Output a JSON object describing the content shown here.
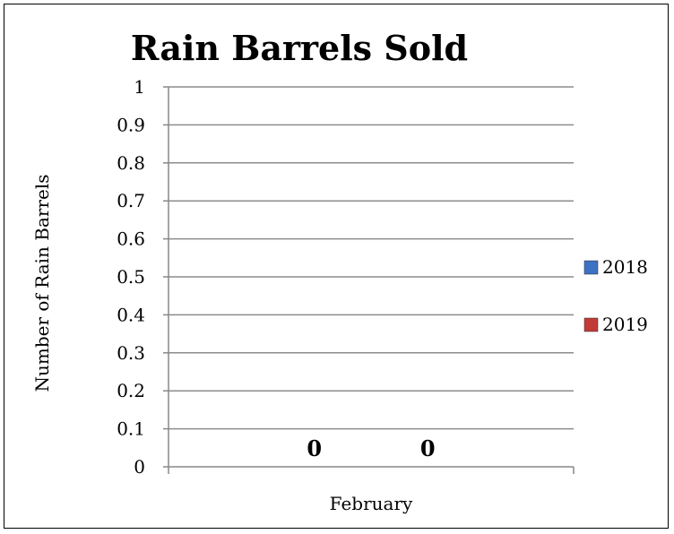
{
  "chart_data": {
    "type": "bar",
    "title": "Rain Barrels Sold",
    "xlabel": "February",
    "ylabel": "Number of Rain Barrels",
    "categories": [
      "February"
    ],
    "ylim": [
      0,
      1
    ],
    "yticks": [
      "0",
      "0.1",
      "0.2",
      "0.3",
      "0.4",
      "0.5",
      "0.6",
      "0.7",
      "0.8",
      "0.9",
      "1"
    ],
    "grid": true,
    "legend_position": "right",
    "series": [
      {
        "name": "2018",
        "values": [
          0
        ],
        "data_label": "0",
        "color": "#3d72c4"
      },
      {
        "name": "2019",
        "values": [
          0
        ],
        "data_label": "0",
        "color": "#c23b36"
      }
    ]
  }
}
